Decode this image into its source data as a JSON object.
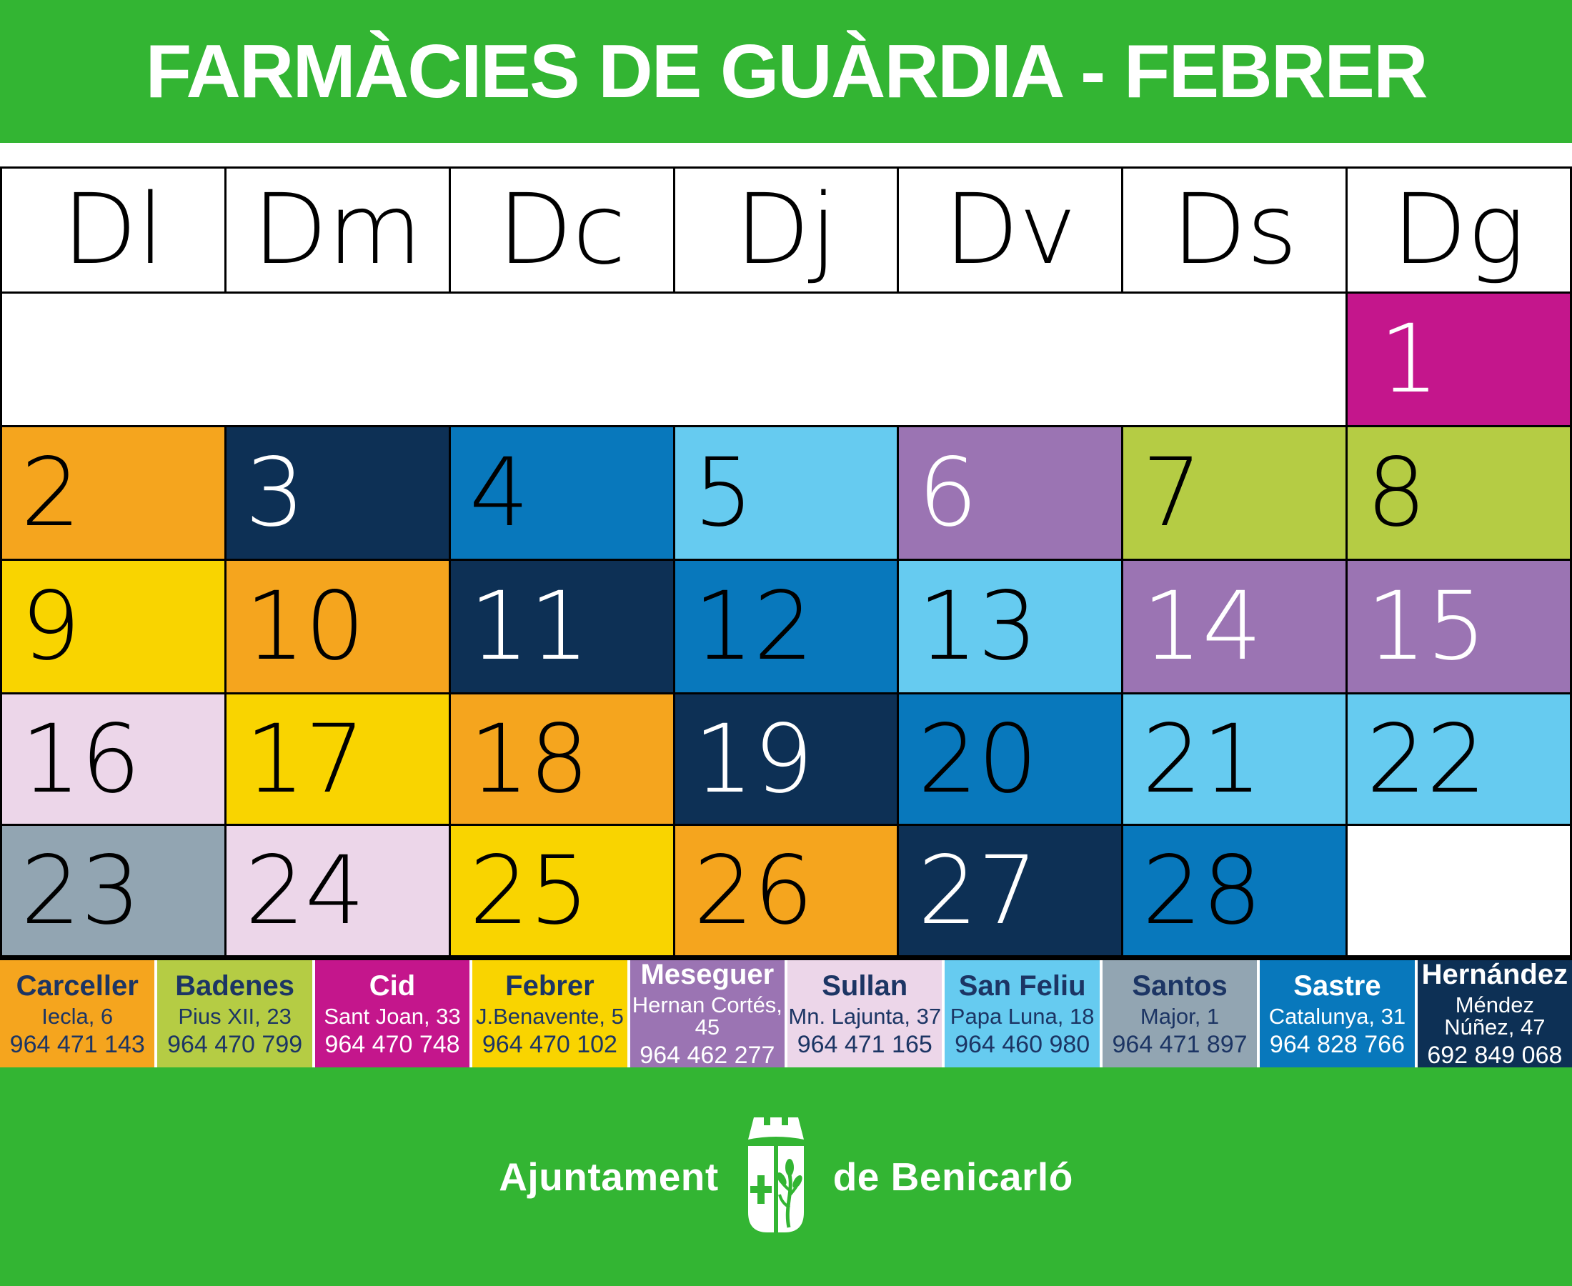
{
  "title": "FARMÀCIES DE GUÀRDIA - FEBRER",
  "day_headers": [
    "Dl",
    "Dm",
    "Dc",
    "Dj",
    "Dv",
    "Ds",
    "Dg"
  ],
  "colors": {
    "green": "#33B533",
    "grid_border": "#000000",
    "navy_text": "#1C3564",
    "white_text": "#FFFFFF"
  },
  "icons": {
    "coat_of_arms": "shield-with-cross-and-plant-under-crown"
  },
  "pharmacies": [
    {
      "id": "carceller",
      "name": "Carceller",
      "address": "Iecla, 6",
      "phone": "964 471 143",
      "color": "#F5A51E",
      "text_color": "#1C3564"
    },
    {
      "id": "badenes",
      "name": "Badenes",
      "address": "Pius XII, 23",
      "phone": "964 470 799",
      "color": "#B5CC44",
      "text_color": "#1C3564"
    },
    {
      "id": "cid",
      "name": "Cid",
      "address": "Sant Joan, 33",
      "phone": "964 470 748",
      "color": "#C4168C",
      "text_color": "#FFFFFF"
    },
    {
      "id": "febrer",
      "name": "Febrer",
      "address": "J.Benavente, 5",
      "phone": "964 470 102",
      "color": "#F9D400",
      "text_color": "#1C3564"
    },
    {
      "id": "meseguer",
      "name": "Meseguer",
      "address": "Hernan Cortés, 45",
      "phone": "964 462 277",
      "color": "#9B74B3",
      "text_color": "#FFFFFF"
    },
    {
      "id": "sullan",
      "name": "Sullan",
      "address": "Mn. Lajunta, 37",
      "phone": "964 471 165",
      "color": "#ECD6E9",
      "text_color": "#1C3564"
    },
    {
      "id": "sanfeliu",
      "name": "San Feliu",
      "address": "Papa Luna, 18",
      "phone": "964 460 980",
      "color": "#66CBF0",
      "text_color": "#1C3564"
    },
    {
      "id": "santos",
      "name": "Santos",
      "address": "Major, 1",
      "phone": "964 471 897",
      "color": "#92A5B2",
      "text_color": "#1C3564"
    },
    {
      "id": "sastre",
      "name": "Sastre",
      "address": "Catalunya, 31",
      "phone": "964 828 766",
      "color": "#0878BC",
      "text_color": "#FFFFFF"
    },
    {
      "id": "hernandez",
      "name": "Hernández",
      "address": "Méndez Núñez, 47",
      "phone": "692 849 068",
      "color": "#0D3055",
      "text_color": "#FFFFFF"
    }
  ],
  "calendar": {
    "weeks": [
      [
        null,
        null,
        null,
        null,
        null,
        null,
        {
          "day": "1",
          "pharmacy": "cid",
          "number_color": "#FFFFFF"
        }
      ],
      [
        {
          "day": "2",
          "pharmacy": "carceller",
          "number_color": "#000000"
        },
        {
          "day": "3",
          "pharmacy": "hernandez",
          "number_color": "#FFFFFF"
        },
        {
          "day": "4",
          "pharmacy": "sastre",
          "number_color": "#000000"
        },
        {
          "day": "5",
          "pharmacy": "sanfeliu",
          "number_color": "#000000"
        },
        {
          "day": "6",
          "pharmacy": "meseguer",
          "number_color": "#FFFFFF"
        },
        {
          "day": "7",
          "pharmacy": "badenes",
          "number_color": "#000000"
        },
        {
          "day": "8",
          "pharmacy": "badenes",
          "number_color": "#000000"
        }
      ],
      [
        {
          "day": "9",
          "pharmacy": "febrer",
          "number_color": "#000000"
        },
        {
          "day": "10",
          "pharmacy": "carceller",
          "number_color": "#000000"
        },
        {
          "day": "11",
          "pharmacy": "hernandez",
          "number_color": "#FFFFFF"
        },
        {
          "day": "12",
          "pharmacy": "sastre",
          "number_color": "#000000"
        },
        {
          "day": "13",
          "pharmacy": "sanfeliu",
          "number_color": "#000000"
        },
        {
          "day": "14",
          "pharmacy": "meseguer",
          "number_color": "#FFFFFF"
        },
        {
          "day": "15",
          "pharmacy": "meseguer",
          "number_color": "#FFFFFF"
        }
      ],
      [
        {
          "day": "16",
          "pharmacy": "sullan",
          "number_color": "#000000"
        },
        {
          "day": "17",
          "pharmacy": "febrer",
          "number_color": "#000000"
        },
        {
          "day": "18",
          "pharmacy": "carceller",
          "number_color": "#000000"
        },
        {
          "day": "19",
          "pharmacy": "hernandez",
          "number_color": "#FFFFFF"
        },
        {
          "day": "20",
          "pharmacy": "sastre",
          "number_color": "#000000"
        },
        {
          "day": "21",
          "pharmacy": "sanfeliu",
          "number_color": "#000000"
        },
        {
          "day": "22",
          "pharmacy": "sanfeliu",
          "number_color": "#000000"
        }
      ],
      [
        {
          "day": "23",
          "pharmacy": "santos",
          "number_color": "#000000"
        },
        {
          "day": "24",
          "pharmacy": "sullan",
          "number_color": "#000000"
        },
        {
          "day": "25",
          "pharmacy": "febrer",
          "number_color": "#000000"
        },
        {
          "day": "26",
          "pharmacy": "carceller",
          "number_color": "#000000"
        },
        {
          "day": "27",
          "pharmacy": "hernandez",
          "number_color": "#FFFFFF"
        },
        {
          "day": "28",
          "pharmacy": "sastre",
          "number_color": "#000000"
        },
        null
      ]
    ]
  },
  "footer": {
    "left": "Ajuntament",
    "right": "de Benicarló"
  }
}
